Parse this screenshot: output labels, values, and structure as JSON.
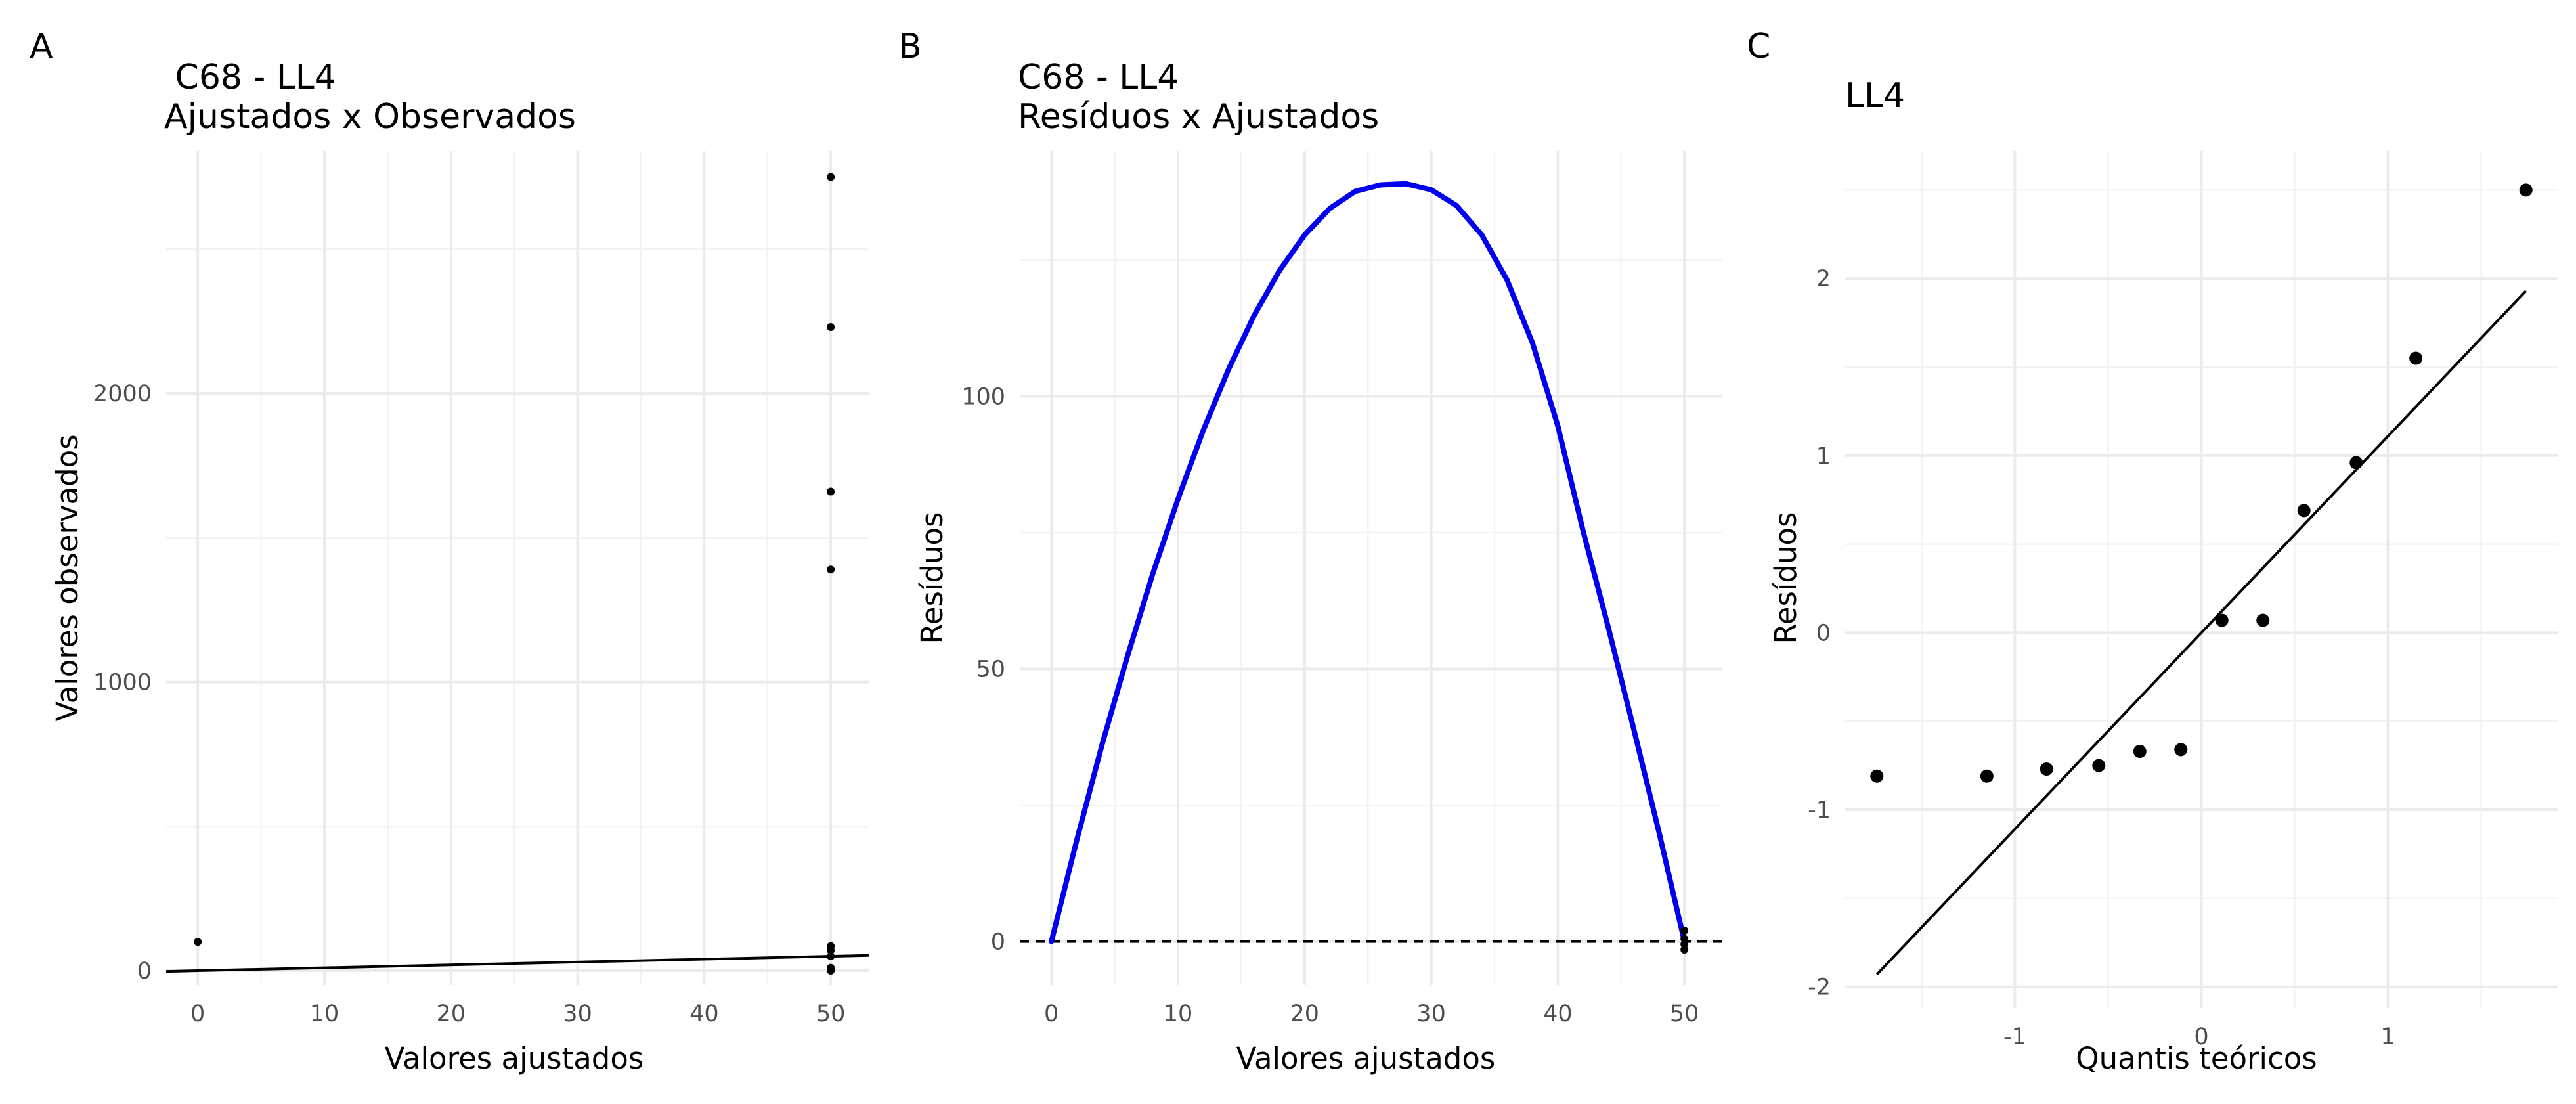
{
  "panels": [
    {
      "letter": "A",
      "title_line1": " C68 - LL4",
      "title_line2": "Ajustados x Observados",
      "xlabel": "Valores ajustados",
      "ylabel": "Valores observados"
    },
    {
      "letter": "B",
      "title_line1": "C68 - LL4",
      "title_line2": "Resíduos x Ajustados",
      "xlabel": "Valores ajustados",
      "ylabel": "Resíduos"
    },
    {
      "letter": "C",
      "title_line1": "LL4",
      "title_line2": "",
      "xlabel": "Quantis teóricos",
      "ylabel": "Resíduos"
    }
  ],
  "chart_data": [
    {
      "type": "scatter",
      "title": " C68 - LL4\nAjustados x Observados",
      "xlabel": "Valores ajustados",
      "ylabel": "Valores observados",
      "xlim": [
        -2.5,
        53
      ],
      "ylim": [
        -50,
        2840
      ],
      "xticks": [
        0,
        10,
        20,
        30,
        40,
        50
      ],
      "yticks": [
        0,
        1000,
        2000
      ],
      "grid": true,
      "points": [
        {
          "x": 0,
          "y": 100
        },
        {
          "x": 50,
          "y": 2750
        },
        {
          "x": 50,
          "y": 2230
        },
        {
          "x": 50,
          "y": 1660
        },
        {
          "x": 50,
          "y": 1390
        },
        {
          "x": 50,
          "y": 85
        },
        {
          "x": 50,
          "y": 70
        },
        {
          "x": 50,
          "y": 50
        },
        {
          "x": 50,
          "y": 10
        },
        {
          "x": 50,
          "y": 0
        }
      ],
      "reference_line": {
        "x": [
          -2.5,
          53
        ],
        "y": [
          -2.5,
          53
        ],
        "color": "#000000"
      }
    },
    {
      "type": "line",
      "title": "C68 - LL4\nResíduos x Ajustados",
      "xlabel": "Valores ajustados",
      "ylabel": "Resíduos",
      "xlim": [
        -2.5,
        53
      ],
      "ylim": [
        -8,
        145
      ],
      "xticks": [
        0,
        10,
        20,
        30,
        40,
        50
      ],
      "yticks": [
        0,
        50,
        100
      ],
      "grid": true,
      "series": [
        {
          "color": "#0000ee",
          "x": [
            0,
            2,
            4,
            6,
            8,
            10,
            12,
            14,
            16,
            18,
            20,
            22,
            24,
            26,
            28,
            30,
            32,
            34,
            36,
            38,
            40,
            42,
            44,
            46,
            48,
            50
          ],
          "y": [
            0,
            18.6,
            36.1,
            52.3,
            67.4,
            81.2,
            93.8,
            105.0,
            114.8,
            123.0,
            129.6,
            134.5,
            137.6,
            138.8,
            139.0,
            137.9,
            135.0,
            129.6,
            121.3,
            109.8,
            94.6,
            75.3,
            57.5,
            39.0,
            20.0,
            0
          ]
        }
      ],
      "hline": {
        "y": 0,
        "style": "dashed",
        "color": "#000000"
      },
      "points": [
        {
          "x": 50,
          "y": 2
        },
        {
          "x": 50,
          "y": 0.5
        },
        {
          "x": 50,
          "y": -0.5
        },
        {
          "x": 50,
          "y": -1.5
        }
      ]
    },
    {
      "type": "scatter",
      "title": "LL4",
      "xlabel": "Quantis teóricos",
      "ylabel": "Resíduos",
      "xlim": [
        -1.91,
        1.91
      ],
      "ylim": [
        -2.12,
        2.72
      ],
      "xticks": [
        -1,
        0,
        1
      ],
      "yticks": [
        -2,
        -1,
        0,
        1,
        2
      ],
      "grid": true,
      "points": [
        {
          "x": -1.74,
          "y": -0.81
        },
        {
          "x": -1.15,
          "y": -0.81
        },
        {
          "x": -0.83,
          "y": -0.77
        },
        {
          "x": -0.55,
          "y": -0.75
        },
        {
          "x": -0.33,
          "y": -0.67
        },
        {
          "x": -0.11,
          "y": -0.66
        },
        {
          "x": 0.11,
          "y": 0.07
        },
        {
          "x": 0.33,
          "y": 0.07
        },
        {
          "x": 0.55,
          "y": 0.69
        },
        {
          "x": 0.83,
          "y": 0.96
        },
        {
          "x": 1.15,
          "y": 1.55
        },
        {
          "x": 1.74,
          "y": 2.5
        }
      ],
      "reference_line": {
        "x": [
          -1.74,
          1.74
        ],
        "y": [
          -1.93,
          1.93
        ],
        "color": "#000000"
      }
    }
  ]
}
